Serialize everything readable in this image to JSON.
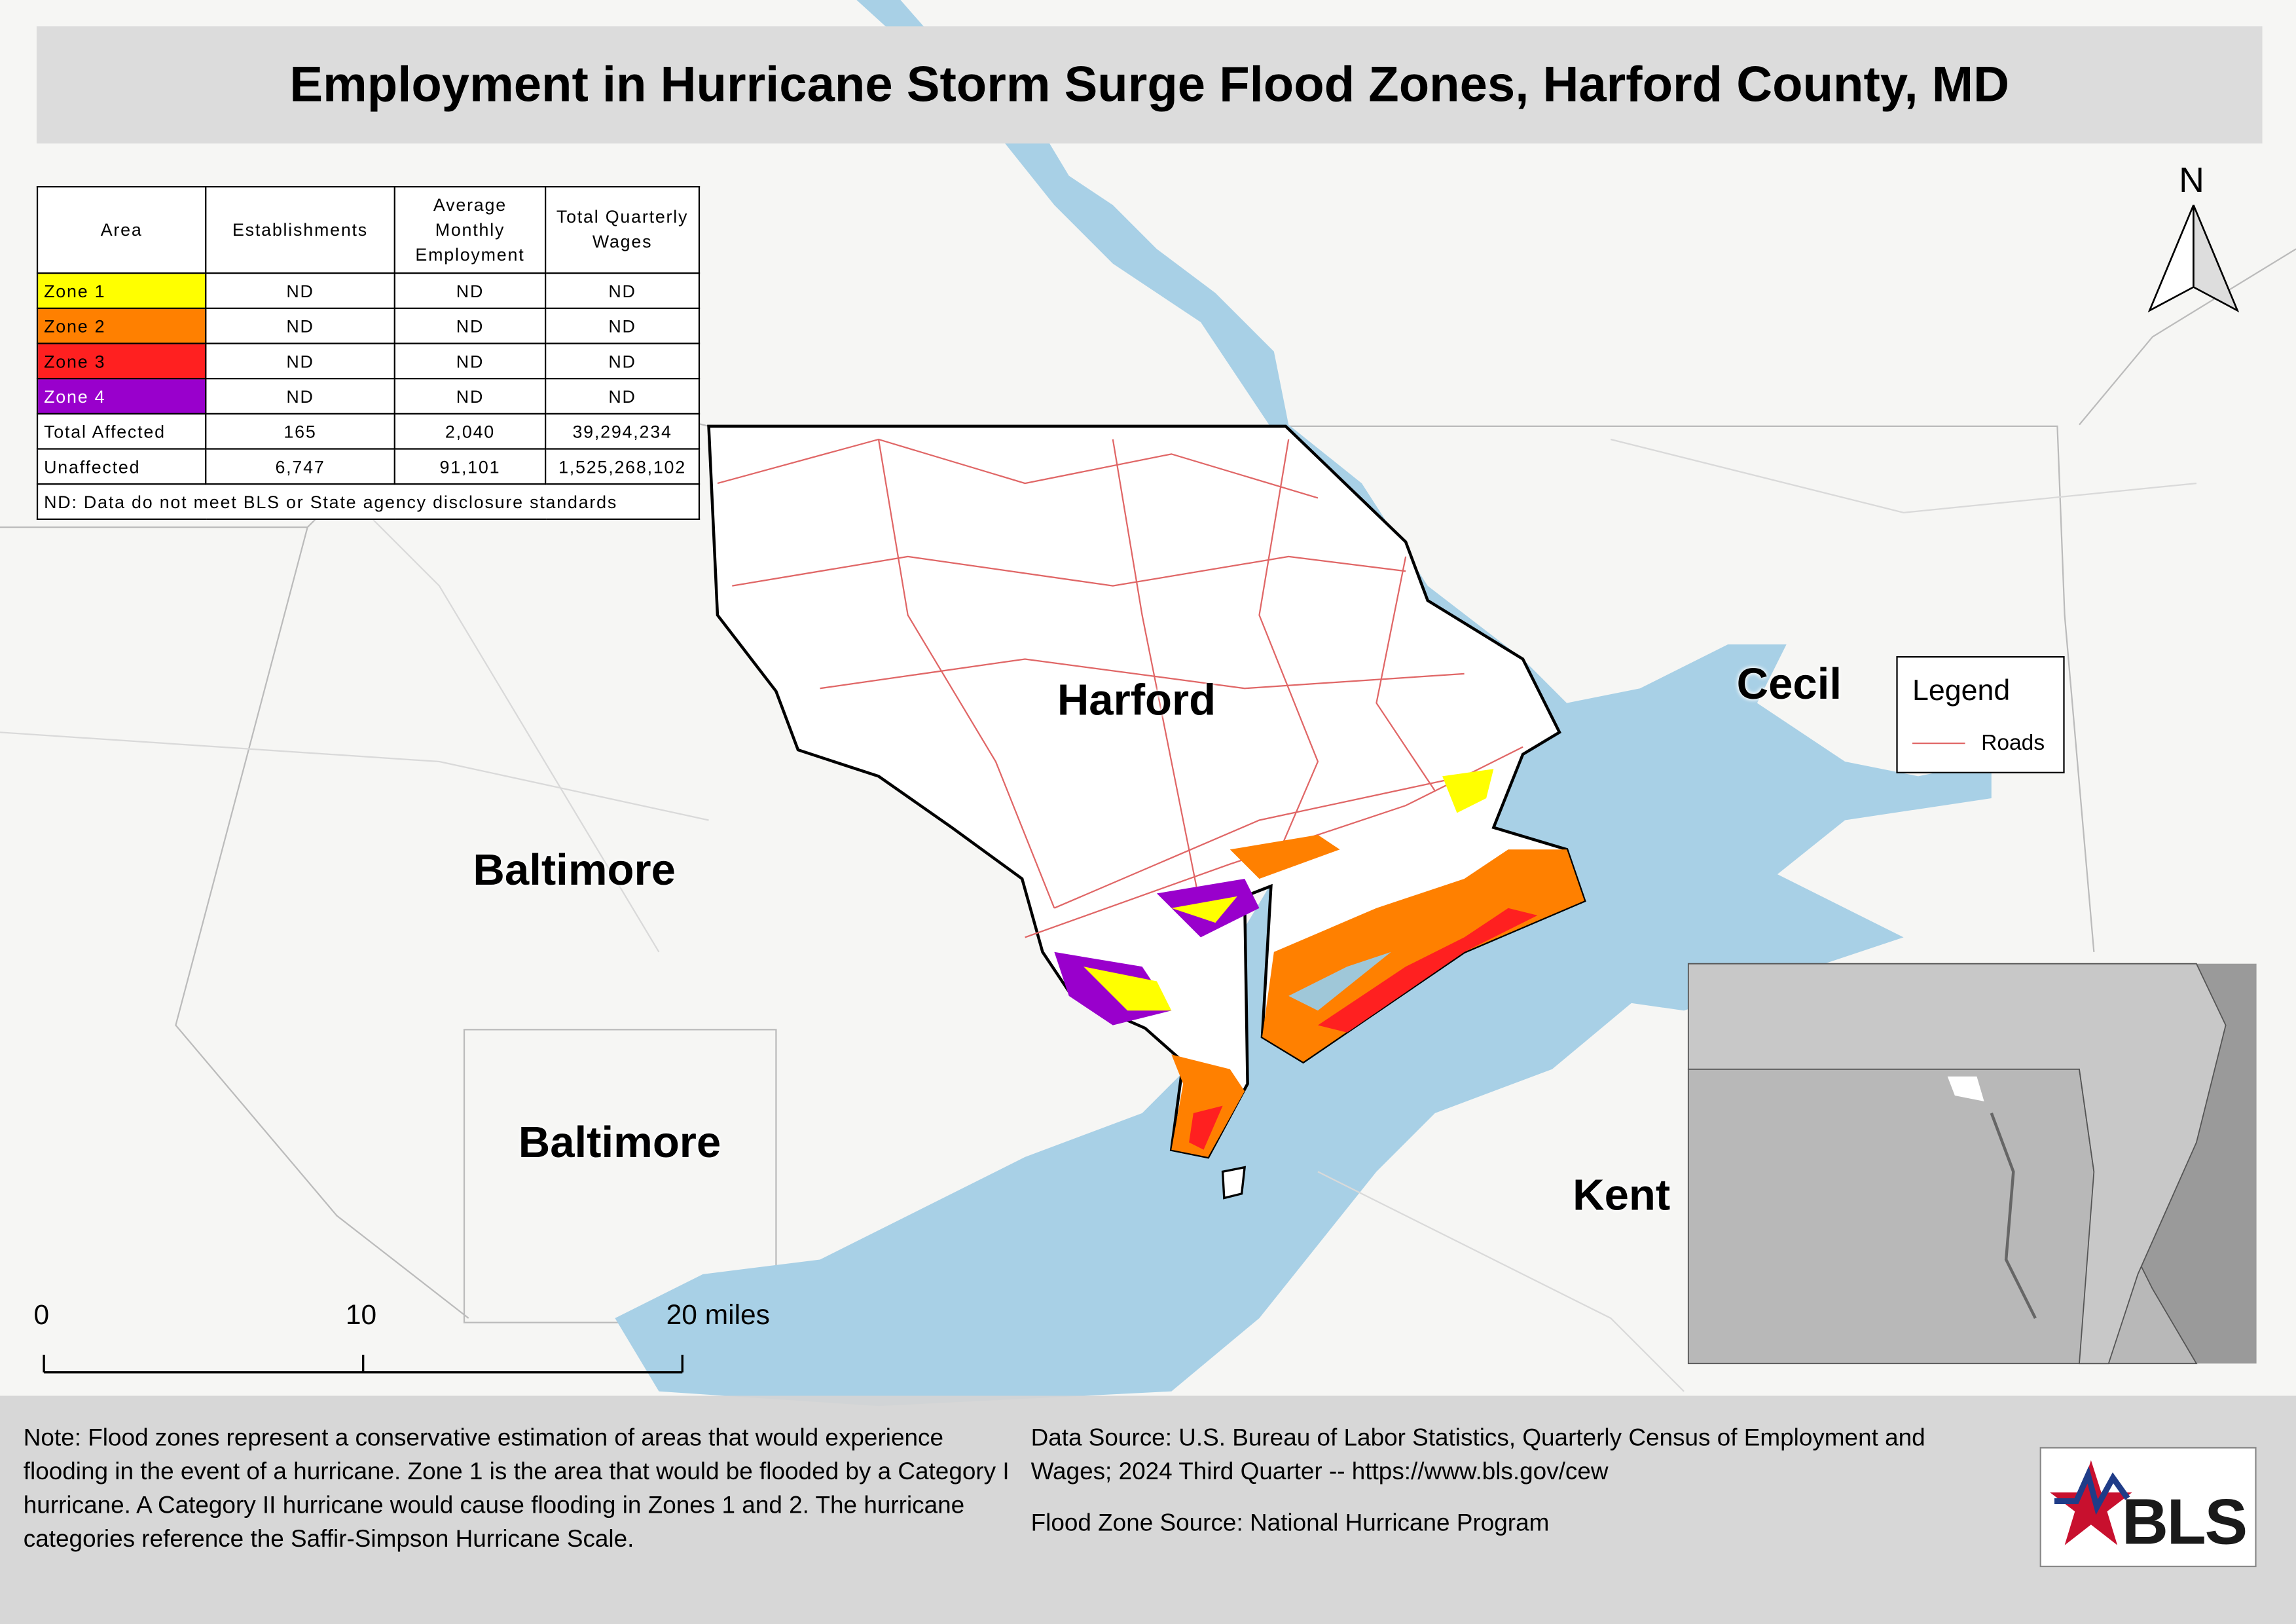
{
  "title": "Employment in Hurricane Storm Surge Flood Zones, Harford County, MD",
  "table": {
    "headers": [
      "Area",
      "Establishments",
      "Average Monthly Employment",
      "Total Quarterly Wages"
    ],
    "rows": [
      {
        "cells": [
          "Zone 1",
          "ND",
          "ND",
          "ND"
        ],
        "color": "#ffff00"
      },
      {
        "cells": [
          "Zone 2",
          "ND",
          "ND",
          "ND"
        ],
        "color": "#ff8000"
      },
      {
        "cells": [
          "Zone 3",
          "ND",
          "ND",
          "ND"
        ],
        "color": "#ff2020"
      },
      {
        "cells": [
          "Zone 4",
          "ND",
          "ND",
          "ND"
        ],
        "color": "#9900cc"
      },
      {
        "cells": [
          "Total Affected",
          "165",
          "2,040",
          "39,294,234"
        ]
      },
      {
        "cells": [
          "Unaffected",
          "6,747",
          "91,101",
          "1,525,268,102"
        ]
      }
    ],
    "footnote": "ND: Data do not meet BLS or State agency disclosure standards"
  },
  "map": {
    "labels": [
      "Harford",
      "Cecil",
      "Baltimore",
      "Baltimore",
      "Kent"
    ],
    "legend": {
      "title": "Legend",
      "items": [
        {
          "label": "Roads",
          "color": "#e06666"
        }
      ]
    },
    "scale_bar": [
      "0",
      "10",
      "20 miles"
    ],
    "north": "N"
  },
  "notes": {
    "note": "Note: Flood zones represent a conservative estimation of areas that would experience flooding in the event of a hurricane. Zone 1 is the area that would be flooded by a Category I hurricane. A Category II hurricane would cause flooding in Zones 1 and 2. The hurricane categories reference the Saffir-Simpson Hurricane Scale.",
    "data_source": "Data Source: U.S. Bureau of Labor Statistics, Quarterly Census of Employment and Wages; 2024 Third Quarter -- https://www.bls.gov/cew",
    "flood_source": "Flood Zone Source: National Hurricane Program"
  },
  "logo": "BLS"
}
